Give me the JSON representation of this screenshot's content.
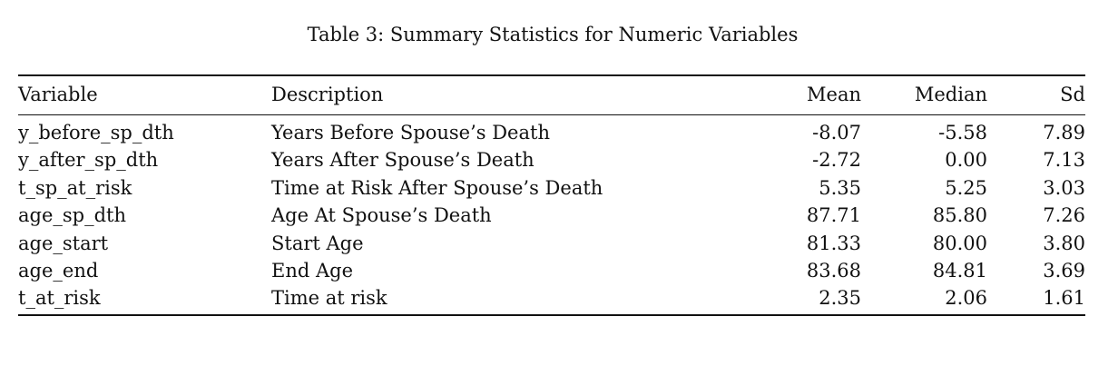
{
  "caption": "Table 3: Summary Statistics for Numeric Variables",
  "headers": {
    "variable": "Variable",
    "description": "Description",
    "mean": "Mean",
    "median": "Median",
    "sd": "Sd"
  },
  "rows": [
    {
      "variable": "y_before_sp_dth",
      "description": "Years Before Spouse’s Death",
      "mean": "-8.07",
      "median": "-5.58",
      "sd": "7.89"
    },
    {
      "variable": "y_after_sp_dth",
      "description": "Years After Spouse’s Death",
      "mean": "-2.72",
      "median": "0.00",
      "sd": "7.13"
    },
    {
      "variable": "t_sp_at_risk",
      "description": "Time at Risk After Spouse’s Death",
      "mean": "5.35",
      "median": "5.25",
      "sd": "3.03"
    },
    {
      "variable": "age_sp_dth",
      "description": "Age At Spouse’s Death",
      "mean": "87.71",
      "median": "85.80",
      "sd": "7.26"
    },
    {
      "variable": "age_start",
      "description": "Start Age",
      "mean": "81.33",
      "median": "80.00",
      "sd": "3.80"
    },
    {
      "variable": "age_end",
      "description": "End Age",
      "mean": "83.68",
      "median": "84.81",
      "sd": "3.69"
    },
    {
      "variable": "t_at_risk",
      "description": "Time at risk",
      "mean": "2.35",
      "median": "2.06",
      "sd": "1.61"
    }
  ]
}
